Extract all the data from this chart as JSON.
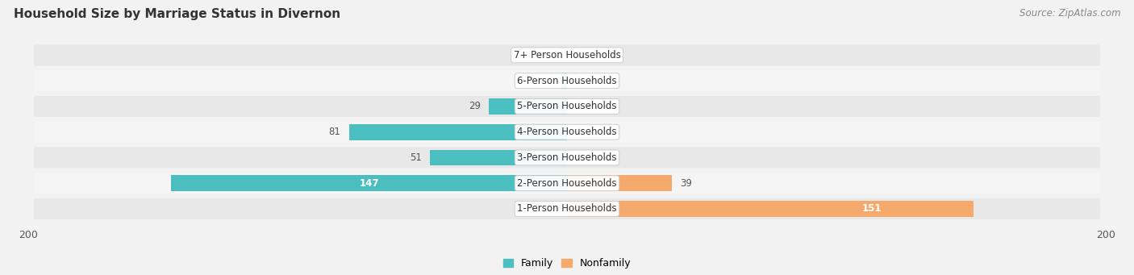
{
  "title": "Household Size by Marriage Status in Divernon",
  "source": "Source: ZipAtlas.com",
  "categories": [
    "7+ Person Households",
    "6-Person Households",
    "5-Person Households",
    "4-Person Households",
    "3-Person Households",
    "2-Person Households",
    "1-Person Households"
  ],
  "family_values": [
    0,
    2,
    29,
    81,
    51,
    147,
    0
  ],
  "nonfamily_values": [
    0,
    0,
    0,
    0,
    0,
    39,
    151
  ],
  "family_color": "#4BBFBF",
  "nonfamily_color": "#F5A96A",
  "xlim_left": -200,
  "xlim_right": 200,
  "bg_color": "#f2f2f2",
  "row_bg_even": "#e8e8e8",
  "row_bg_odd": "#f5f5f5",
  "title_fontsize": 11,
  "source_fontsize": 8.5,
  "tick_fontsize": 9,
  "bar_label_fontsize": 8.5,
  "category_fontsize": 8.5
}
